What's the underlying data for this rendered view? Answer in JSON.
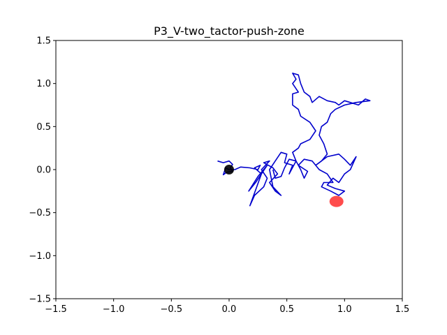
{
  "chart_data": {
    "type": "line",
    "title": "P3_V-two_tactor-push-zone",
    "xlabel": "",
    "ylabel": "",
    "xlim": [
      -1.5,
      1.5
    ],
    "ylim": [
      -1.5,
      1.5
    ],
    "xticks": [
      -1.5,
      -1.0,
      -0.5,
      0.0,
      0.5,
      1.0,
      1.5
    ],
    "yticks": [
      -1.5,
      -1.0,
      -0.5,
      0.0,
      0.5,
      1.0,
      1.5
    ],
    "xtick_labels": [
      "−1.5",
      "−1.0",
      "−0.5",
      "0.0",
      "0.5",
      "1.0",
      "1.5"
    ],
    "ytick_labels": [
      "−1.5",
      "−1.0",
      "−0.5",
      "0.0",
      "0.5",
      "1.0",
      "1.5"
    ],
    "grid": false,
    "series": [
      {
        "color": "#0000cc",
        "points": [
          [
            -0.1,
            0.1
          ],
          [
            -0.05,
            0.08
          ],
          [
            0.0,
            0.1
          ],
          [
            0.03,
            0.06
          ],
          [
            0.01,
            0.02
          ],
          [
            0.03,
            -0.02
          ],
          [
            -0.02,
            -0.03
          ],
          [
            -0.05,
            -0.06
          ],
          [
            -0.03,
            0.02
          ],
          [
            0.0,
            0.0
          ],
          [
            0.05,
            0.0
          ],
          [
            0.1,
            0.03
          ],
          [
            0.18,
            0.02
          ],
          [
            0.25,
            0.0
          ],
          [
            0.27,
            0.05
          ],
          [
            0.22,
            0.02
          ],
          [
            0.28,
            -0.05
          ],
          [
            0.33,
            0.05
          ],
          [
            0.25,
            -0.08
          ],
          [
            0.17,
            -0.25
          ],
          [
            0.23,
            -0.15
          ],
          [
            0.28,
            -0.05
          ],
          [
            0.18,
            -0.42
          ],
          [
            0.22,
            -0.3
          ],
          [
            0.3,
            -0.2
          ],
          [
            0.33,
            -0.1
          ],
          [
            0.28,
            0.0
          ],
          [
            0.35,
            0.1
          ],
          [
            0.3,
            0.08
          ],
          [
            0.38,
            0.02
          ],
          [
            0.42,
            -0.05
          ],
          [
            0.35,
            -0.15
          ],
          [
            0.4,
            -0.25
          ],
          [
            0.45,
            -0.3
          ],
          [
            0.38,
            -0.2
          ],
          [
            0.35,
            0.0
          ],
          [
            0.4,
            0.1
          ],
          [
            0.45,
            0.2
          ],
          [
            0.5,
            0.18
          ],
          [
            0.48,
            0.08
          ],
          [
            0.55,
            0.05
          ],
          [
            0.52,
            -0.05
          ],
          [
            0.58,
            0.1
          ],
          [
            0.55,
            0.2
          ],
          [
            0.6,
            0.25
          ],
          [
            0.62,
            0.3
          ],
          [
            0.7,
            0.35
          ],
          [
            0.75,
            0.45
          ],
          [
            0.7,
            0.55
          ],
          [
            0.62,
            0.62
          ],
          [
            0.6,
            0.7
          ],
          [
            0.55,
            0.75
          ],
          [
            0.55,
            0.88
          ],
          [
            0.6,
            0.9
          ],
          [
            0.55,
            1.0
          ],
          [
            0.58,
            1.05
          ],
          [
            0.55,
            1.12
          ],
          [
            0.6,
            1.1
          ],
          [
            0.62,
            1.0
          ],
          [
            0.65,
            0.9
          ],
          [
            0.7,
            0.85
          ],
          [
            0.72,
            0.78
          ],
          [
            0.78,
            0.85
          ],
          [
            0.85,
            0.8
          ],
          [
            0.92,
            0.78
          ],
          [
            0.95,
            0.75
          ],
          [
            1.0,
            0.8
          ],
          [
            1.05,
            0.78
          ],
          [
            1.12,
            0.75
          ],
          [
            1.18,
            0.82
          ],
          [
            1.22,
            0.8
          ],
          [
            1.1,
            0.78
          ],
          [
            1.0,
            0.75
          ],
          [
            0.92,
            0.7
          ],
          [
            0.88,
            0.65
          ],
          [
            0.85,
            0.55
          ],
          [
            0.8,
            0.5
          ],
          [
            0.78,
            0.4
          ],
          [
            0.82,
            0.3
          ],
          [
            0.85,
            0.18
          ],
          [
            0.8,
            0.1
          ],
          [
            0.75,
            0.05
          ],
          [
            0.85,
            0.15
          ],
          [
            0.95,
            0.18
          ],
          [
            1.0,
            0.12
          ],
          [
            1.05,
            0.05
          ],
          [
            1.1,
            0.15
          ],
          [
            1.05,
            0.0
          ],
          [
            1.0,
            -0.05
          ],
          [
            0.95,
            -0.15
          ],
          [
            0.9,
            -0.1
          ],
          [
            0.85,
            -0.18
          ],
          [
            0.92,
            -0.22
          ],
          [
            1.0,
            -0.25
          ],
          [
            0.95,
            -0.3
          ],
          [
            0.88,
            -0.25
          ],
          [
            0.8,
            -0.2
          ],
          [
            0.82,
            -0.15
          ],
          [
            0.9,
            -0.15
          ],
          [
            0.85,
            -0.05
          ],
          [
            0.78,
            0.0
          ],
          [
            0.72,
            0.1
          ],
          [
            0.65,
            0.12
          ],
          [
            0.6,
            0.05
          ],
          [
            0.68,
            -0.02
          ],
          [
            0.65,
            -0.1
          ],
          [
            0.62,
            0.0
          ],
          [
            0.58,
            0.1
          ],
          [
            0.52,
            0.12
          ],
          [
            0.48,
            0.02
          ],
          [
            0.45,
            -0.08
          ],
          [
            0.4,
            -0.1
          ],
          [
            0.38,
            0.0
          ]
        ]
      }
    ],
    "markers": [
      {
        "label": "",
        "x": 0.0,
        "y": 0.0,
        "color": "#000000"
      },
      {
        "label": "",
        "x": 0.93,
        "y": -0.37,
        "color": "#ff0000"
      }
    ]
  }
}
